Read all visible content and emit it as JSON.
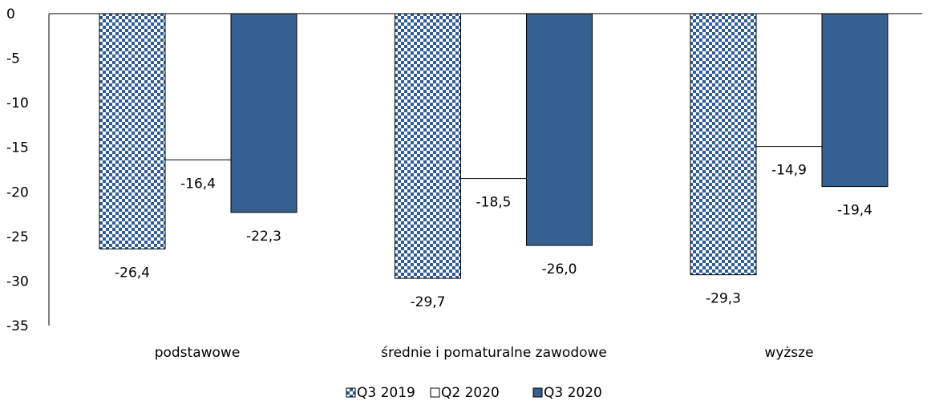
{
  "chart_data": {
    "type": "bar",
    "categories": [
      "podstawowe",
      "średnie i pomaturalne zawodowe",
      "wyższe"
    ],
    "series": [
      {
        "name": "Q3 2019",
        "values": [
          -26.4,
          -29.7,
          -29.3
        ],
        "labels": [
          "-26,4",
          "-29,7",
          "-29,3"
        ],
        "fill": "checker",
        "color": "#2f5c94"
      },
      {
        "name": "Q2 2020",
        "values": [
          -16.4,
          -18.5,
          -14.9
        ],
        "labels": [
          "-16,4",
          "-18,5",
          "-14,9"
        ],
        "fill": "white",
        "color": "#ffffff"
      },
      {
        "name": "Q3 2020",
        "values": [
          -22.3,
          -26.0,
          -19.4
        ],
        "labels": [
          "-22,3",
          "-26,0",
          "-19,4"
        ],
        "fill": "solid",
        "color": "#36608f"
      }
    ],
    "yticks": [
      {
        "value": 0,
        "label": "0"
      },
      {
        "value": -5,
        "label": "-5"
      },
      {
        "value": -10,
        "label": "-10"
      },
      {
        "value": -15,
        "label": "-15"
      },
      {
        "value": -20,
        "label": "-20"
      },
      {
        "value": -25,
        "label": "-25"
      },
      {
        "value": -30,
        "label": "-30"
      },
      {
        "value": -35,
        "label": "-35"
      }
    ],
    "ylim": [
      -35,
      0
    ],
    "grid": false,
    "legend": "bottom-center",
    "title": "",
    "xlabel": "",
    "ylabel": ""
  }
}
